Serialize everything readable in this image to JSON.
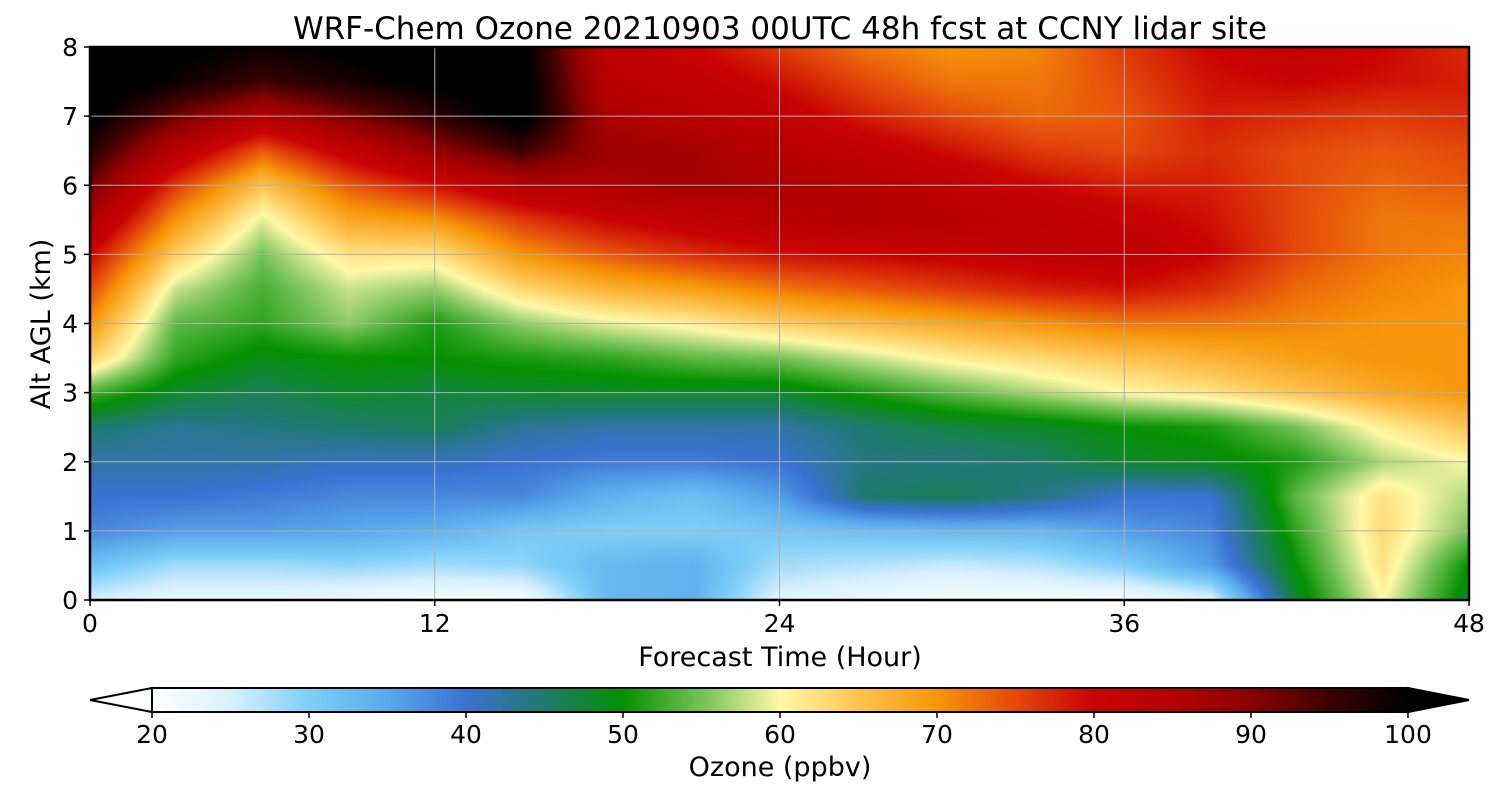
{
  "chart_data": {
    "type": "heatmap",
    "title": "WRF-Chem Ozone  20210903 00UTC 48h fcst at CCNY lidar site",
    "xlabel": "Forecast Time (Hour)",
    "ylabel": "Alt AGL (km)",
    "xlim": [
      0,
      48
    ],
    "ylim": [
      0,
      8
    ],
    "x_ticks": [
      "0",
      "12",
      "24",
      "36",
      "48"
    ],
    "y_ticks": [
      "0",
      "1",
      "2",
      "3",
      "4",
      "5",
      "6",
      "7",
      "8"
    ],
    "grid": true,
    "x_hours": [
      0,
      3,
      6,
      9,
      12,
      15,
      18,
      21,
      24,
      27,
      30,
      33,
      36,
      39,
      42,
      45,
      48
    ],
    "alt_km": [
      0,
      0.5,
      1,
      1.5,
      2,
      2.5,
      3,
      3.5,
      4,
      4.5,
      5,
      5.5,
      6,
      6.5,
      7,
      7.5,
      8
    ],
    "ozone_ppbv": [
      [
        25,
        23,
        23,
        22,
        21,
        21,
        33,
        34,
        24,
        22,
        21,
        21,
        21,
        24,
        48,
        60,
        48
      ],
      [
        32,
        28,
        28,
        29,
        28,
        29,
        33,
        34,
        28,
        27,
        26,
        27,
        30,
        36,
        50,
        62,
        50
      ],
      [
        38,
        36,
        36,
        35,
        34,
        31,
        30,
        30,
        31,
        32,
        33,
        33,
        36,
        38,
        52,
        63,
        55
      ],
      [
        40,
        40,
        39,
        38,
        38,
        38,
        34,
        32,
        36,
        45,
        46,
        44,
        40,
        40,
        54,
        62,
        57
      ],
      [
        42,
        42,
        42,
        41,
        41,
        40,
        39,
        39,
        40,
        44,
        44,
        45,
        48,
        49,
        51,
        57,
        60
      ],
      [
        45,
        43,
        44,
        45,
        46,
        43,
        42,
        42,
        42,
        45,
        47,
        48,
        50,
        51,
        55,
        61,
        65
      ],
      [
        53,
        48,
        46,
        48,
        47,
        48,
        48,
        48,
        48,
        51,
        54,
        57,
        60,
        62,
        65,
        68,
        70
      ],
      [
        64,
        52,
        49,
        50,
        50,
        51,
        52,
        54,
        55,
        58,
        61,
        63,
        65,
        67,
        69,
        70,
        70
      ],
      [
        70,
        54,
        52,
        56,
        51,
        56,
        59,
        61,
        64,
        66,
        68,
        70,
        72,
        72,
        71,
        70,
        70
      ],
      [
        75,
        58,
        53,
        58,
        56,
        63,
        67,
        69,
        72,
        74,
        76,
        78,
        79,
        77,
        73,
        71,
        70
      ],
      [
        80,
        64,
        55,
        62,
        62,
        70,
        74,
        77,
        79,
        80,
        81,
        82,
        83,
        80,
        75,
        72,
        71
      ],
      [
        86,
        70,
        59,
        68,
        70,
        76,
        80,
        82,
        84,
        85,
        84,
        83,
        81,
        79,
        75,
        72,
        72
      ],
      [
        92,
        76,
        65,
        74,
        79,
        85,
        86,
        87,
        86,
        85,
        83,
        80,
        78,
        78,
        75,
        73,
        74
      ],
      [
        97,
        84,
        74,
        82,
        89,
        95,
        88,
        87,
        84,
        82,
        79,
        76,
        75,
        77,
        75,
        74,
        75
      ],
      [
        101,
        92,
        85,
        91,
        96,
        102,
        86,
        84,
        82,
        78,
        75,
        73,
        74,
        78,
        77,
        76,
        77
      ],
      [
        103,
        99,
        95,
        98,
        101,
        102,
        84,
        82,
        79,
        75,
        72,
        72,
        75,
        79,
        80,
        79,
        78
      ],
      [
        103,
        101,
        99,
        101,
        103,
        101,
        83,
        80,
        76,
        72,
        70,
        71,
        76,
        80,
        82,
        80,
        77
      ]
    ],
    "colorbar": {
      "label": "Ozone  (ppbv)",
      "min": 20,
      "max": 100,
      "ticks": [
        "20",
        "30",
        "40",
        "50",
        "60",
        "70",
        "80",
        "90",
        "100"
      ],
      "extend": "both",
      "stops": [
        {
          "v": 20,
          "c": "#ffffff"
        },
        {
          "v": 25,
          "c": "#d9f1fd"
        },
        {
          "v": 30,
          "c": "#7fcff8"
        },
        {
          "v": 35,
          "c": "#5aa9ec"
        },
        {
          "v": 40,
          "c": "#3b72d3"
        },
        {
          "v": 45,
          "c": "#1f7a6c"
        },
        {
          "v": 50,
          "c": "#049101"
        },
        {
          "v": 55,
          "c": "#75c256"
        },
        {
          "v": 60,
          "c": "#fff9a8"
        },
        {
          "v": 65,
          "c": "#fdc451"
        },
        {
          "v": 70,
          "c": "#f79608"
        },
        {
          "v": 75,
          "c": "#e4490b"
        },
        {
          "v": 80,
          "c": "#c90202"
        },
        {
          "v": 85,
          "c": "#b40000"
        },
        {
          "v": 90,
          "c": "#8c0000"
        },
        {
          "v": 95,
          "c": "#3c0000"
        },
        {
          "v": 100,
          "c": "#000000"
        }
      ]
    }
  }
}
